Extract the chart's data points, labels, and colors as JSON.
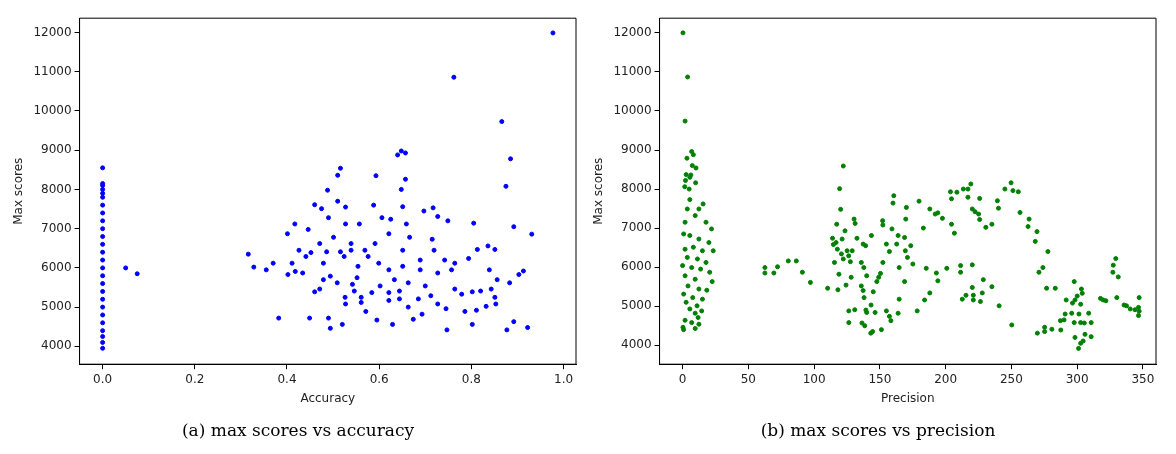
{
  "chart_data": [
    {
      "type": "scatter",
      "xlabel": "Accuracy",
      "ylabel": "Max scores",
      "annotations": [
        "(a) max scores vs accuracy"
      ],
      "marker": "circle",
      "grid": false,
      "legend": false,
      "xlim": [
        -0.05,
        1.027
      ],
      "ylim": [
        3545,
        12365
      ],
      "xticks": [
        {
          "value": 0,
          "label": "0.0"
        },
        {
          "value": 0.2,
          "label": "0.2"
        },
        {
          "value": 0.4,
          "label": "0.4"
        },
        {
          "value": 0.6,
          "label": "0.6"
        },
        {
          "value": 0.8,
          "label": "0.8"
        },
        {
          "value": 1,
          "label": "1.0"
        }
      ],
      "yticks": [
        4000,
        5000,
        6000,
        7000,
        8000,
        9000,
        10000,
        11000,
        12000
      ],
      "series": [
        {
          "color": "#0000ff",
          "x": [
            0,
            0,
            0,
            0,
            0,
            0,
            0,
            0,
            0,
            0,
            0,
            0,
            0,
            0,
            0,
            0,
            0,
            0,
            0,
            0,
            0,
            0,
            0,
            0,
            0,
            0,
            0.05,
            0.075,
            0.977,
            0.762,
            0.866,
            0.885,
            0.875,
            0.648,
            0.657,
            0.64,
            0.516,
            0.51,
            0.593,
            0.657,
            0.488,
            0.648,
            0.892,
            0.931,
            0.382,
            0.316,
            0.328,
            0.355,
            0.401,
            0.417,
            0.46,
            0.475,
            0.446,
            0.452,
            0.51,
            0.527,
            0.527,
            0.49,
            0.501,
            0.539,
            0.557,
            0.588,
            0.606,
            0.625,
            0.651,
            0.659,
            0.697,
            0.717,
            0.727,
            0.749,
            0.805,
            0.666,
            0.621,
            0.715,
            0.411,
            0.441,
            0.479,
            0.524,
            0.554,
            0.576,
            0.599,
            0.621,
            0.651,
            0.689,
            0.727,
            0.757,
            0.794,
            0.813,
            0.836,
            0.851,
            0.839,
            0.913,
            0.903,
            0.883,
            0.856,
            0.843,
            0.82,
            0.802,
            0.851,
            0.832,
            0.853,
            0.811,
            0.786,
            0.802,
            0.877,
            0.892,
            0.922,
            0.747,
            0.629,
            0.674,
            0.693,
            0.595,
            0.571,
            0.52,
            0.494,
            0.49,
            0.449,
            0.526,
            0.527,
            0.546,
            0.552,
            0.542,
            0.561,
            0.584,
            0.602,
            0.621,
            0.633,
            0.644,
            0.663,
            0.685,
            0.7,
            0.712,
            0.727,
            0.745,
            0.764,
            0.779,
            0.471,
            0.479,
            0.46,
            0.494,
            0.509,
            0.434,
            0.418,
            0.402,
            0.37,
            0.426,
            0.471,
            0.486,
            0.516,
            0.539,
            0.569,
            0.591,
            0.651,
            0.689,
            0.719,
            0.742,
            0.764,
            0.561,
            0.644,
            0.663,
            0.621
          ],
          "values": [
            3950,
            4100,
            4250,
            4400,
            4600,
            4800,
            5000,
            5200,
            5400,
            5600,
            5800,
            6000,
            6200,
            6400,
            6600,
            6800,
            7000,
            7200,
            7400,
            7600,
            7800,
            7900,
            8000,
            8100,
            8150,
            8550,
            6000,
            5850,
            11990,
            10860,
            9730,
            8780,
            8080,
            8980,
            8930,
            8880,
            8540,
            8360,
            8350,
            8260,
            7980,
            8000,
            7050,
            6860,
            4720,
            6350,
            6020,
            5950,
            6870,
            7120,
            7610,
            7510,
            6980,
            6390,
            7700,
            7550,
            7120,
            7280,
            6780,
            6620,
            7120,
            7600,
            7280,
            7240,
            7560,
            7120,
            7450,
            7530,
            7310,
            7200,
            7140,
            6780,
            6870,
            6730,
            6120,
            6290,
            6120,
            6290,
            6040,
            6290,
            6120,
            5950,
            6040,
            5950,
            5870,
            5950,
            6240,
            6470,
            6560,
            6470,
            5950,
            5920,
            5830,
            5620,
            5700,
            5460,
            5410,
            5390,
            5250,
            5020,
            5080,
            4920,
            4890,
            4560,
            4420,
            4630,
            4480,
            4420,
            4560,
            4690,
            4820,
            4670,
            4890,
            4560,
            4460,
            4720,
            4720,
            5250,
            5080,
            5410,
            5750,
            5580,
            5250,
            5370,
            5540,
            5370,
            5700,
            5410,
            5620,
            5210,
            5540,
            5290,
            5080,
            4960,
            5460,
            5330,
            5460,
            5700,
            5390,
            5790,
            5620,
            5870,
            5910,
            5830,
            6120,
            6450,
            6620,
            6410,
            6410,
            6450,
            6450,
            6620,
            6450,
            6200,
            6450,
            6200,
            6120,
            5120,
            5210,
            5000,
            5170
          ]
        }
      ]
    },
    {
      "type": "scatter",
      "xlabel": "Precision",
      "ylabel": "Max scores",
      "annotations": [
        "(b) max scores vs precision"
      ],
      "marker": "circle",
      "grid": false,
      "legend": false,
      "xlim": [
        -17.5,
        360
      ],
      "ylim": [
        3515,
        12375
      ],
      "xticks": [
        0,
        50,
        100,
        150,
        200,
        250,
        300,
        350
      ],
      "yticks": [
        4000,
        5000,
        6000,
        7000,
        8000,
        9000,
        10000,
        11000,
        12000
      ],
      "series": [
        {
          "color": "#008000",
          "x": [
            0.3,
            3.8,
            1.9,
            6.9,
            8.2,
            3.3,
            10.2,
            7.4,
            2.7,
            6.3,
            2.2,
            5.5,
            9.9,
            5,
            1.6,
            5.5,
            15.6,
            3.6,
            12.4,
            1.9,
            9.6,
            17.8,
            22,
            0.8,
            5.5,
            12.4,
            20,
            1.9,
            8.2,
            15.1,
            23.3,
            3.6,
            11.3,
            17.8,
            0,
            6.9,
            13.7,
            20.6,
            1.9,
            9.6,
            22.5,
            4.1,
            12.4,
            18.4,
            0.8,
            7.7,
            15.1,
            2.7,
            11,
            5.5,
            14.5,
            9.6,
            1.9,
            11.8,
            6.9,
            12.4,
            0.3,
            0.8,
            9.6,
            62.6,
            62.6,
            69.4,
            72.2,
            80.4,
            86.5,
            91.1,
            97.2,
            110.3,
            122.2,
            119.4,
            120.2,
            117.2,
            123.5,
            114,
            116.7,
            121.3,
            114.7,
            117.7,
            125.1,
            129,
            120.8,
            126.3,
            115.5,
            122.2,
            127.6,
            118.9,
            128.2,
            118.1,
            124.3,
            126.4,
            126.4,
            130.9,
            130.4,
            131.2,
            132.6,
            137.3,
            139.2,
            135.9,
            137.8,
            140,
            135.9,
            137.3,
            138,
            139.4,
            140,
            136.4,
            138.5,
            143.1,
            144.5,
            143.3,
            146.4,
            145,
            147.7,
            149.1,
            150.5,
            152.3,
            143.6,
            152.1,
            152.3,
            155,
            157.3,
            159.2,
            160,
            160.6,
            155,
            157.3,
            158.4,
            151.2,
            162.8,
            163.9,
            164.7,
            164.7,
            163.9,
            168.8,
            169.4,
            170.2,
            169.7,
            171,
            168.8,
            173.5,
            175.1,
            179.8,
            178.4,
            184,
            183.1,
            185.3,
            188,
            188,
            192.1,
            194.1,
            193,
            194.1,
            197.6,
            200.9,
            203.7,
            204.5,
            208.6,
            204.5,
            206.7,
            211.4,
            211.4,
            212.7,
            215.5,
            213.5,
            217,
            219.2,
            217,
            220.3,
            222.4,
            225.1,
            225.9,
            225.9,
            220.3,
            220.3,
            221.1,
            221.1,
            226.5,
            227.9,
            228.7,
            230.6,
            235.2,
            235.2,
            239.4,
            240.2,
            240.7,
            245.1,
            249.8,
            251.2,
            255.3,
            250.3,
            256.6,
            263.5,
            262.7,
            269.5,
            268.2,
            277.8,
            274,
            271,
            276.8,
            283.4,
            269.8,
            275.3,
            275.3,
            280.8,
            287.6,
            287.3,
            290.1,
            290.9,
            291.7,
            295.9,
            296.5,
            297.8,
            298.4,
            297.8,
            298.4,
            300.1,
            301.4,
            301.1,
            302.7,
            302.7,
            303.3,
            303.9,
            304.6,
            306,
            302.7,
            305.5,
            308.8,
            310.7,
            310.7,
            317.8,
            319.8,
            321.9,
            329.4,
            327.5,
            327.2,
            331.3,
            330.2,
            335.7,
            337.6,
            340.4,
            344,
            347.2,
            346.7,
            347.2,
            346.7
          ],
          "values": [
            12000,
            10870,
            9740,
            8960,
            8880,
            8790,
            8540,
            8600,
            8370,
            8360,
            8220,
            8300,
            8160,
            8000,
            8060,
            7730,
            7620,
            7490,
            7490,
            7150,
            7320,
            7150,
            6980,
            6850,
            6810,
            6720,
            6630,
            6460,
            6510,
            6420,
            6420,
            6250,
            6210,
            6120,
            6040,
            5990,
            5950,
            5870,
            5780,
            5690,
            5630,
            5520,
            5440,
            5410,
            5310,
            5220,
            5180,
            5100,
            5010,
            4930,
            4880,
            4820,
            4640,
            4710,
            4580,
            4540,
            4460,
            4400,
            4430,
            5990,
            5850,
            5850,
            6010,
            6160,
            6160,
            5870,
            5610,
            5460,
            8590,
            8010,
            7480,
            7100,
            6930,
            6740,
            6630,
            6720,
            6580,
            6460,
            6420,
            6420,
            6340,
            6290,
            6120,
            6210,
            6140,
            5820,
            5740,
            5420,
            5540,
            4880,
            4580,
            4910,
            7230,
            7120,
            6740,
            6590,
            6550,
            6120,
            5990,
            5780,
            5520,
            5400,
            5220,
            4900,
            4840,
            4570,
            4500,
            4310,
            4350,
            5030,
            4840,
            5370,
            5630,
            5740,
            5840,
            6120,
            6810,
            7190,
            7080,
            6590,
            6400,
            6980,
            7640,
            7830,
            4880,
            4740,
            4630,
            4400,
            6590,
            6810,
            5990,
            5180,
            4820,
            6760,
            6420,
            7530,
            7230,
            6250,
            5630,
            6550,
            6080,
            7690,
            4880,
            5160,
            7000,
            5970,
            5340,
            7490,
            7360,
            7390,
            5850,
            5650,
            7250,
            5970,
            7930,
            7750,
            7920,
            7100,
            6870,
            6040,
            5870,
            5180,
            5280,
            8000,
            8000,
            8130,
            7790,
            7490,
            7420,
            7360,
            7220,
            7760,
            6060,
            5480,
            5280,
            5160,
            5120,
            5340,
            5680,
            7020,
            7100,
            5500,
            7700,
            7510,
            5010,
            8000,
            8160,
            7960,
            7930,
            4520,
            7400,
            7230,
            7040,
            6910,
            6660,
            6400,
            5990,
            5870,
            5460,
            5460,
            4310,
            4460,
            4350,
            4410,
            4390,
            4630,
            4650,
            4800,
            5160,
            4820,
            5080,
            5630,
            5160,
            4580,
            4200,
            5260,
            4800,
            3920,
            4050,
            5050,
            5440,
            5330,
            4110,
            4280,
            4580,
            4570,
            4820,
            4580,
            4220,
            5200,
            5160,
            5140,
            6220,
            6050,
            5870,
            5750,
            5220,
            5030,
            5010,
            4930,
            4910,
            5220,
            4970,
            4870,
            4760
          ]
        }
      ]
    }
  ]
}
